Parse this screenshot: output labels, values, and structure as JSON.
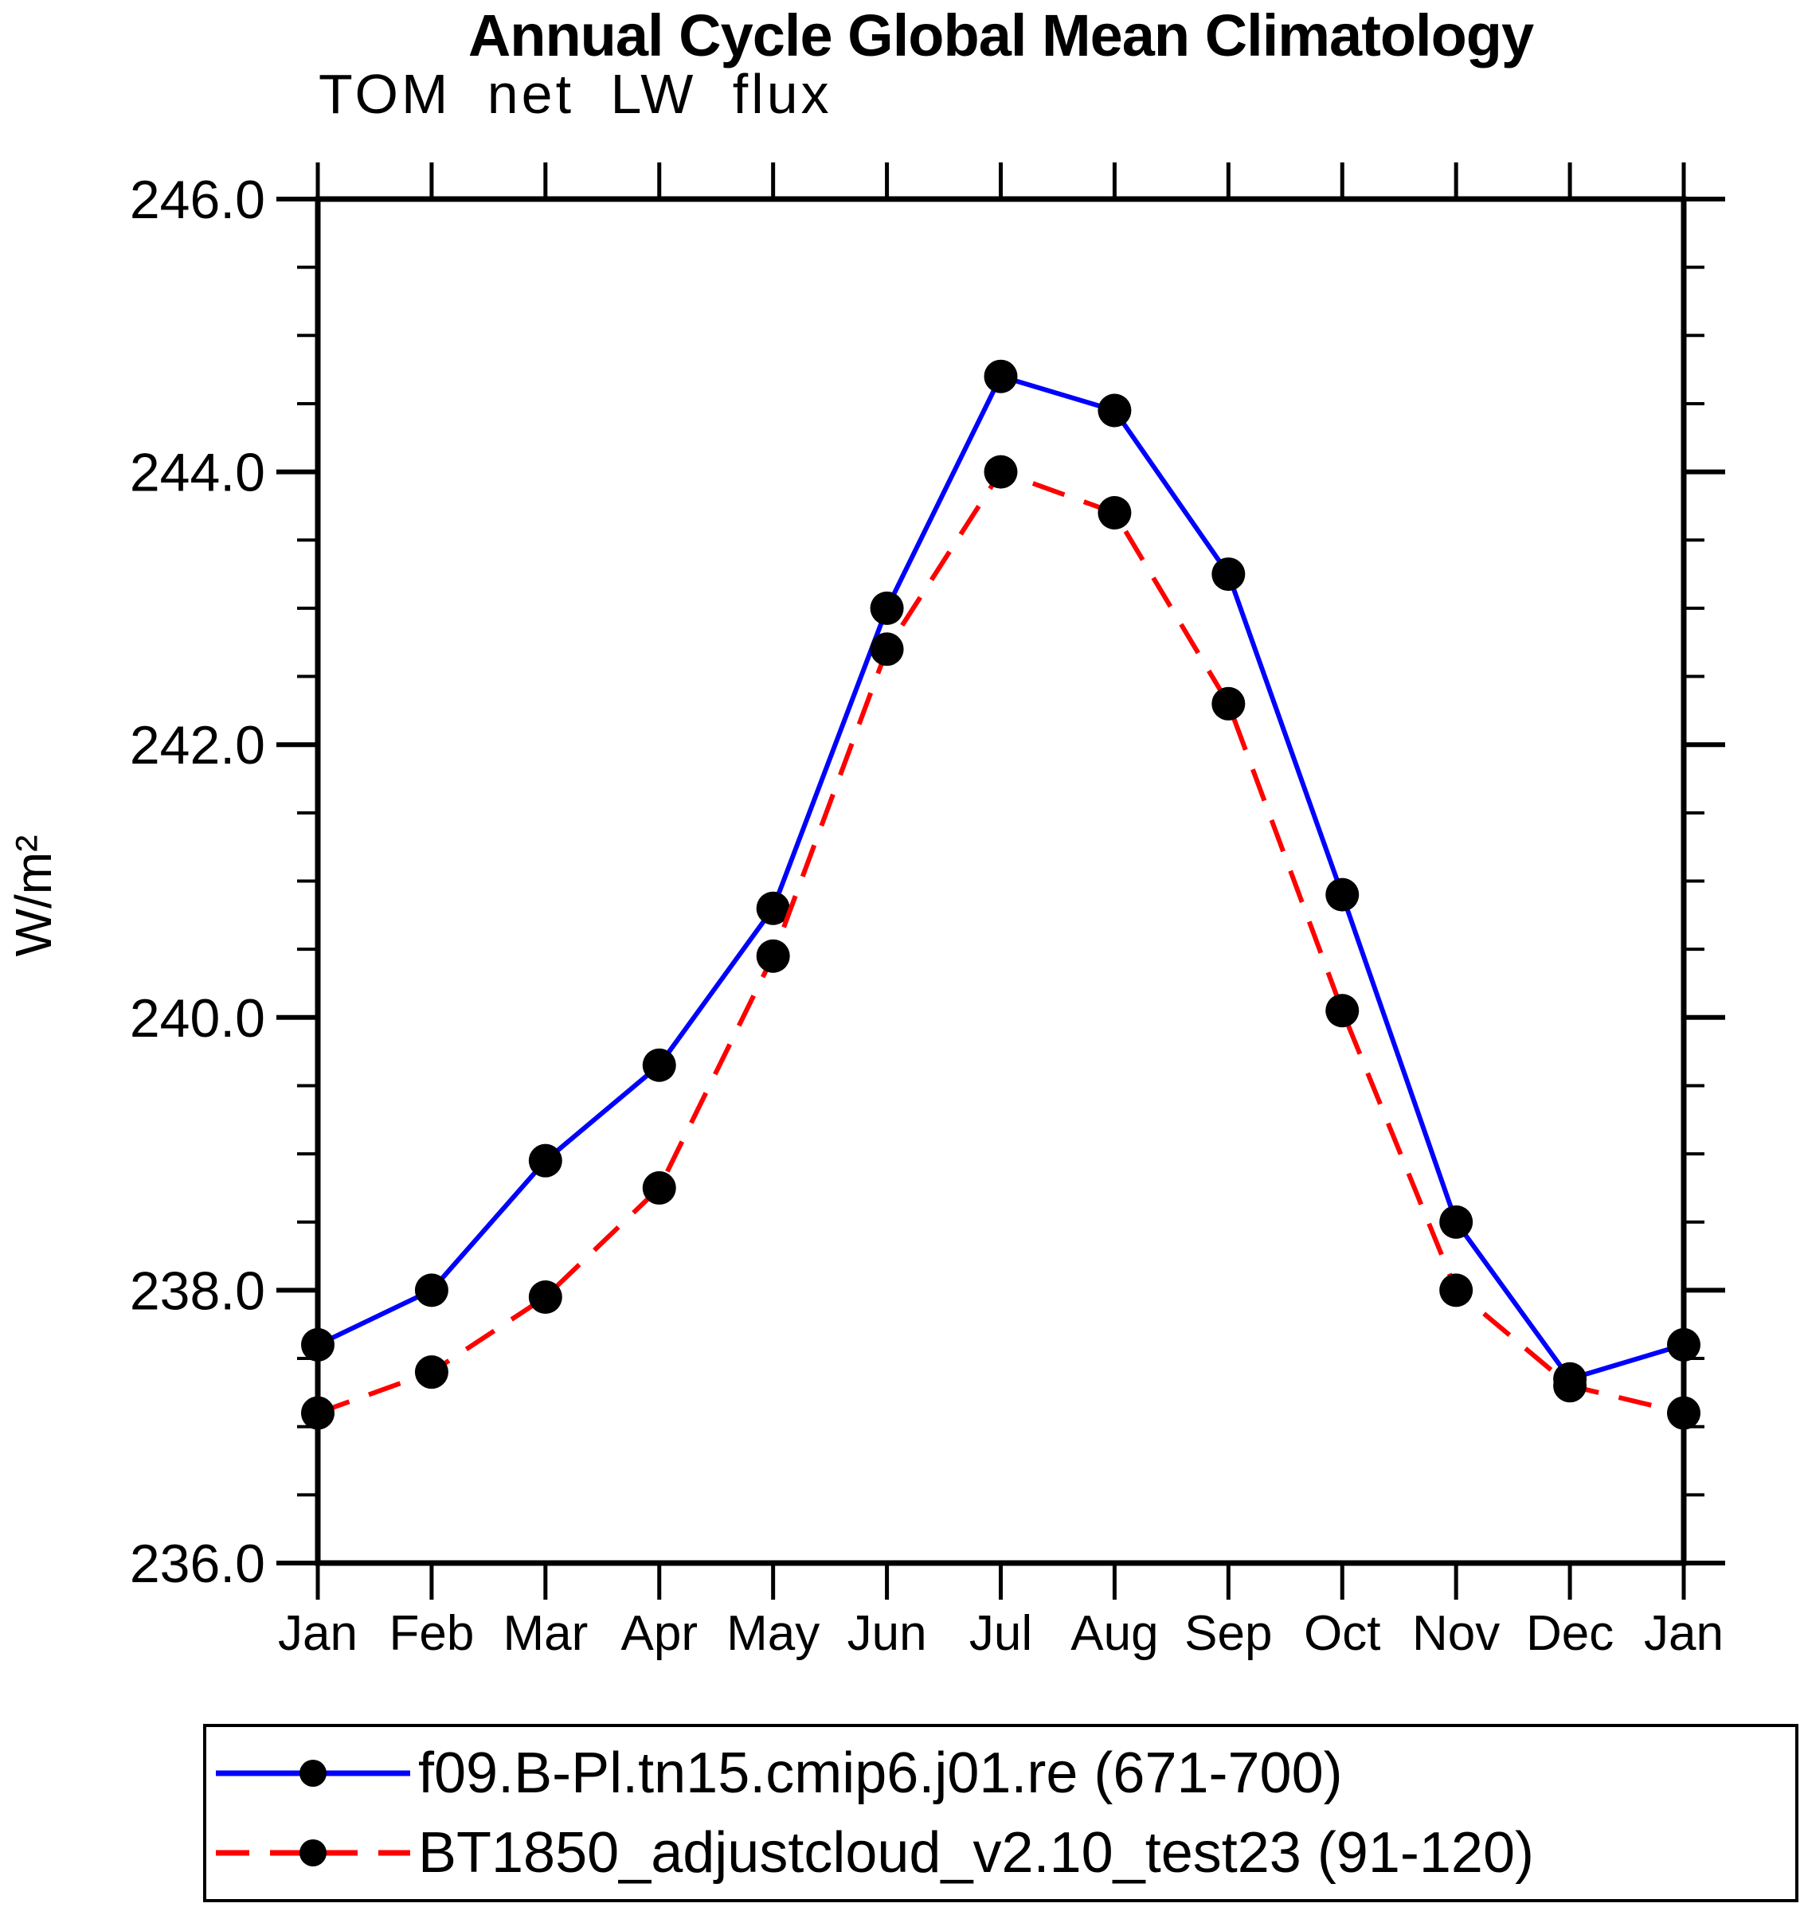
{
  "title": "Annual Cycle Global Mean Climatology",
  "subtitle": "TOM net LW flux",
  "ylabel": "W/m²",
  "chart_data": {
    "type": "line",
    "title": "Annual Cycle Global Mean Climatology",
    "subtitle": "TOM net LW flux",
    "xlabel": "",
    "ylabel": "W/m²",
    "categories": [
      "Jan",
      "Feb",
      "Mar",
      "Apr",
      "May",
      "Jun",
      "Jul",
      "Aug",
      "Sep",
      "Oct",
      "Nov",
      "Dec",
      "Jan"
    ],
    "ylim": [
      236.0,
      246.0
    ],
    "ytick_major": [
      236.0,
      238.0,
      240.0,
      242.0,
      244.0,
      246.0
    ],
    "ytick_labels": [
      "236.0",
      "238.0",
      "240.0",
      "242.0",
      "244.0",
      "246.0"
    ],
    "ytick_minor_step": 0.5,
    "grid": false,
    "legend_position": "bottom-box",
    "axis_color": "#000000",
    "series": [
      {
        "name": "f09.B-Pl.tn15.cmip6.j01.re (671-700)",
        "color": "#0000ff",
        "line_style": "solid",
        "marker": "filled-circle",
        "marker_color": "#000000",
        "values": [
          237.6,
          238.0,
          238.95,
          239.65,
          240.8,
          243.0,
          244.7,
          244.45,
          243.25,
          240.9,
          238.5,
          237.35,
          237.6
        ]
      },
      {
        "name": "BT1850_adjustcloud_v2.10_test23 (91-120)",
        "color": "#ff0000",
        "line_style": "dashed",
        "marker": "filled-circle",
        "marker_color": "#000000",
        "values": [
          237.1,
          237.4,
          237.95,
          238.75,
          240.45,
          242.7,
          244.0,
          243.7,
          242.3,
          240.05,
          238.0,
          237.3,
          237.1
        ]
      }
    ]
  }
}
